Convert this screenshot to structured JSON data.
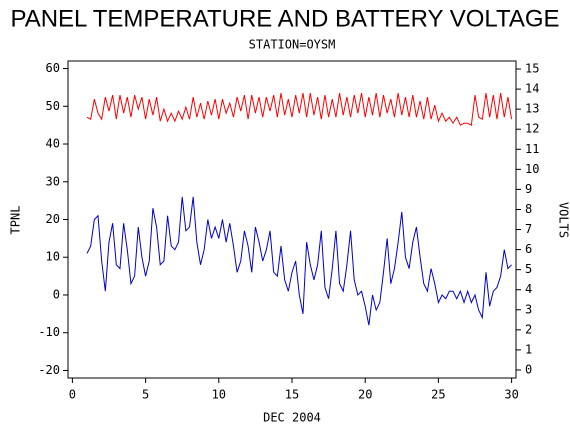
{
  "chart_data": {
    "type": "line",
    "title": "PANEL TEMPERATURE AND BATTERY VOLTAGE",
    "subtitle": "STATION=OYSM",
    "x_label": "DEC 2004",
    "y_label": "TPNL",
    "y2_label": "VOLTS",
    "xlim": [
      -0.3,
      30.3
    ],
    "xticks": [
      0,
      5,
      10,
      15,
      20,
      25,
      30
    ],
    "ylim": [
      -22,
      62
    ],
    "yticks": [
      -20,
      -10,
      0,
      10,
      20,
      30,
      40,
      50,
      60
    ],
    "y2lim": [
      -0.4,
      15.4
    ],
    "y2ticks": [
      0,
      1,
      2,
      3,
      4,
      5,
      6,
      7,
      8,
      9,
      10,
      11,
      12,
      13,
      14,
      15
    ],
    "x": [
      1,
      1.25,
      1.5,
      1.75,
      2,
      2.25,
      2.5,
      2.75,
      3,
      3.25,
      3.5,
      3.75,
      4,
      4.25,
      4.5,
      4.75,
      5,
      5.25,
      5.5,
      5.75,
      6,
      6.25,
      6.5,
      6.75,
      7,
      7.25,
      7.5,
      7.75,
      8,
      8.25,
      8.5,
      8.75,
      9,
      9.25,
      9.5,
      9.75,
      10,
      10.25,
      10.5,
      10.75,
      11,
      11.25,
      11.5,
      11.75,
      12,
      12.25,
      12.5,
      12.75,
      13,
      13.25,
      13.5,
      13.75,
      14,
      14.25,
      14.5,
      14.75,
      15,
      15.25,
      15.5,
      15.75,
      16,
      16.25,
      16.5,
      16.75,
      17,
      17.25,
      17.5,
      17.75,
      18,
      18.25,
      18.5,
      18.75,
      19,
      19.25,
      19.5,
      19.75,
      20,
      20.25,
      20.5,
      20.75,
      21,
      21.25,
      21.5,
      21.75,
      22,
      22.25,
      22.5,
      22.75,
      23,
      23.25,
      23.5,
      23.75,
      24,
      24.25,
      24.5,
      24.75,
      25,
      25.25,
      25.5,
      25.75,
      26,
      26.25,
      26.5,
      26.75,
      27,
      27.25,
      27.5,
      27.75,
      28,
      28.25,
      28.5,
      28.75,
      29,
      29.25,
      29.5,
      29.75,
      30
    ],
    "series": [
      {
        "name": "TPNL",
        "color": "#0000cc",
        "axis": "y",
        "values": [
          11,
          13,
          20,
          21,
          9,
          1,
          14,
          19,
          8,
          7,
          19,
          12,
          3,
          5,
          18,
          10,
          5,
          9,
          23,
          18,
          8,
          9,
          21,
          13,
          12,
          14,
          26,
          17,
          18,
          26,
          14,
          8,
          12,
          20,
          15,
          18,
          15,
          20,
          14,
          19,
          13,
          6,
          9,
          17,
          13,
          6,
          18,
          14,
          9,
          12,
          17,
          6,
          5,
          13,
          4,
          1,
          6,
          9,
          0,
          -5,
          14,
          8,
          4,
          8,
          17,
          2,
          -1,
          7,
          17,
          3,
          1,
          8,
          17,
          4,
          0,
          1,
          -3,
          -8,
          0,
          -4,
          -2,
          6,
          15,
          3,
          7,
          14,
          22,
          10,
          7,
          14,
          18,
          10,
          3,
          1,
          7,
          3,
          -2,
          0,
          -1,
          1,
          1,
          -1,
          1,
          -2,
          1,
          -2,
          0,
          -4,
          -6,
          6,
          -3,
          1,
          2,
          5,
          12,
          7,
          8
        ]
      },
      {
        "name": "VOLTS",
        "color": "#ff0000",
        "axis": "y2",
        "values": [
          12.6,
          12.5,
          13.5,
          12.8,
          12.5,
          13.6,
          12.9,
          13.7,
          12.5,
          13.7,
          12.8,
          13.6,
          12.6,
          13.7,
          13.0,
          13.6,
          12.5,
          13.5,
          12.7,
          13.6,
          12.4,
          13.0,
          12.4,
          12.8,
          12.4,
          12.9,
          12.5,
          13.1,
          12.5,
          13.6,
          12.6,
          13.3,
          12.5,
          13.4,
          12.7,
          13.5,
          12.5,
          13.5,
          12.8,
          13.3,
          12.6,
          13.6,
          12.9,
          13.7,
          12.5,
          13.7,
          12.8,
          13.6,
          12.6,
          13.6,
          12.9,
          13.7,
          12.6,
          13.8,
          12.7,
          13.5,
          12.6,
          13.7,
          12.8,
          13.8,
          12.6,
          13.8,
          12.7,
          13.6,
          12.5,
          13.7,
          12.6,
          13.5,
          12.6,
          13.8,
          12.7,
          13.6,
          12.6,
          13.7,
          12.8,
          13.8,
          12.6,
          13.6,
          12.7,
          13.8,
          12.6,
          13.7,
          12.8,
          13.5,
          12.6,
          13.8,
          12.7,
          13.6,
          12.6,
          13.7,
          12.6,
          13.4,
          12.5,
          13.6,
          12.5,
          13.2,
          12.4,
          12.8,
          12.4,
          12.6,
          12.3,
          12.6,
          12.2,
          12.3,
          12.3,
          12.2,
          13.7,
          12.6,
          12.5,
          13.8,
          12.6,
          13.7,
          12.5,
          13.8,
          12.6,
          13.6,
          12.5
        ]
      }
    ]
  }
}
